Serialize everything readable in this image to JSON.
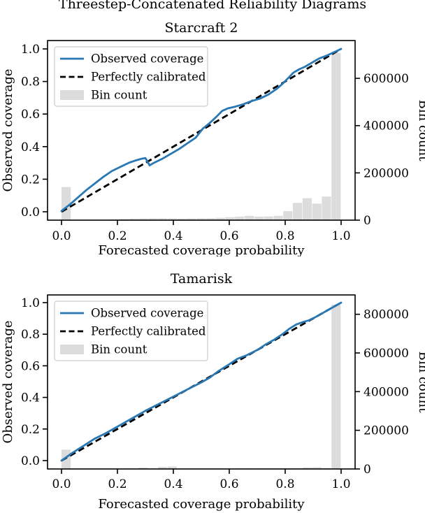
{
  "figure": {
    "suptitle": "Threestep-Concatenated Reliability Diagrams"
  },
  "colors": {
    "observed_line": "#2878b5",
    "calibrated_line": "#000000",
    "bin_fill": "#dcdcdc",
    "legend_border": "#cccccc",
    "axis": "#000000"
  },
  "chart_data": [
    {
      "type": "line+bar",
      "title": "Starcraft 2",
      "xlabel": "Forecasted coverage probability",
      "ylabel": "Observed coverage",
      "ylabel_right": "Bin count",
      "xlim": [
        -0.05,
        1.05
      ],
      "ylim": [
        -0.05,
        1.05
      ],
      "ylim_right": [
        0,
        760000
      ],
      "xticks": [
        0.0,
        0.2,
        0.4,
        0.6,
        0.8,
        1.0
      ],
      "yticks": [
        0.0,
        0.2,
        0.4,
        0.6,
        0.8,
        1.0
      ],
      "yticks_right": [
        0,
        200000,
        400000,
        600000
      ],
      "grid": false,
      "legend_position": "upper-left",
      "legend": [
        {
          "label": "Observed coverage",
          "marker": "line"
        },
        {
          "label": "Perfectly calibrated",
          "marker": "dashed"
        },
        {
          "label": "Bin count",
          "marker": "patch"
        }
      ],
      "series": [
        {
          "name": "Observed coverage",
          "kind": "line",
          "x": [
            0.0,
            0.03,
            0.06,
            0.09,
            0.12,
            0.15,
            0.18,
            0.21,
            0.24,
            0.265,
            0.285,
            0.3,
            0.315,
            0.33,
            0.36,
            0.39,
            0.42,
            0.45,
            0.48,
            0.505,
            0.53,
            0.555,
            0.575,
            0.595,
            0.62,
            0.65,
            0.68,
            0.71,
            0.74,
            0.77,
            0.79,
            0.81,
            0.83,
            0.85,
            0.87,
            0.895,
            0.92,
            0.95,
            0.975,
            1.0
          ],
          "y": [
            0.005,
            0.045,
            0.09,
            0.135,
            0.175,
            0.215,
            0.25,
            0.275,
            0.3,
            0.315,
            0.325,
            0.33,
            0.285,
            0.3,
            0.325,
            0.355,
            0.385,
            0.42,
            0.455,
            0.51,
            0.545,
            0.585,
            0.62,
            0.635,
            0.645,
            0.66,
            0.68,
            0.695,
            0.72,
            0.755,
            0.785,
            0.82,
            0.855,
            0.875,
            0.89,
            0.915,
            0.94,
            0.96,
            0.98,
            1.0
          ]
        },
        {
          "name": "Perfectly calibrated",
          "kind": "line",
          "style": "dashed",
          "x": [
            0.0,
            1.0
          ],
          "y": [
            0.0,
            1.0
          ]
        },
        {
          "name": "Bin count",
          "kind": "bar",
          "axis": "right",
          "bin_start": 0.0,
          "bin_width": 0.034483,
          "counts": [
            140000,
            1500,
            800,
            800,
            1500,
            3500,
            5000,
            6500,
            7500,
            8000,
            8000,
            7500,
            7000,
            7500,
            8000,
            8500,
            10000,
            12500,
            15000,
            18000,
            15000,
            15500,
            18000,
            38000,
            73000,
            93000,
            70000,
            100000,
            707000
          ]
        }
      ]
    },
    {
      "type": "line+bar",
      "title": "Tamarisk",
      "xlabel": "Forecasted coverage probability",
      "ylabel": "Observed coverage",
      "ylabel_right": "Bin count",
      "xlim": [
        -0.05,
        1.05
      ],
      "ylim": [
        -0.05,
        1.05
      ],
      "ylim_right": [
        0,
        900000
      ],
      "xticks": [
        0.0,
        0.2,
        0.4,
        0.6,
        0.8,
        1.0
      ],
      "yticks": [
        0.0,
        0.2,
        0.4,
        0.6,
        0.8,
        1.0
      ],
      "yticks_right": [
        0,
        200000,
        400000,
        600000,
        800000
      ],
      "grid": false,
      "legend_position": "upper-left",
      "legend": [
        {
          "label": "Observed coverage",
          "marker": "line"
        },
        {
          "label": "Perfectly calibrated",
          "marker": "dashed"
        },
        {
          "label": "Bin count",
          "marker": "patch"
        }
      ],
      "series": [
        {
          "name": "Observed coverage",
          "kind": "line",
          "x": [
            0.0,
            0.04,
            0.08,
            0.12,
            0.16,
            0.2,
            0.25,
            0.3,
            0.35,
            0.4,
            0.45,
            0.5,
            0.53,
            0.56,
            0.6,
            0.63,
            0.66,
            0.7,
            0.73,
            0.76,
            0.79,
            0.815,
            0.84,
            0.865,
            0.885,
            0.91,
            0.94,
            0.97,
            1.0
          ],
          "y": [
            0.0,
            0.05,
            0.095,
            0.14,
            0.175,
            0.215,
            0.265,
            0.315,
            0.36,
            0.405,
            0.45,
            0.495,
            0.525,
            0.565,
            0.61,
            0.645,
            0.665,
            0.7,
            0.735,
            0.765,
            0.8,
            0.835,
            0.862,
            0.878,
            0.888,
            0.91,
            0.94,
            0.97,
            1.0
          ]
        },
        {
          "name": "Perfectly calibrated",
          "kind": "line",
          "style": "dashed",
          "x": [
            0.0,
            1.0
          ],
          "y": [
            0.0,
            1.0
          ]
        },
        {
          "name": "Bin count",
          "kind": "bar",
          "axis": "right",
          "bin_start": 0.0,
          "bin_width": 0.034483,
          "counts": [
            100000,
            800,
            500,
            500,
            500,
            500,
            800,
            1000,
            7000,
            1500,
            11000,
            13000,
            1500,
            1200,
            1200,
            1500,
            1500,
            1500,
            1800,
            2000,
            2000,
            2200,
            2500,
            3000,
            3500,
            8000,
            9000,
            4000,
            850000
          ]
        }
      ]
    }
  ]
}
